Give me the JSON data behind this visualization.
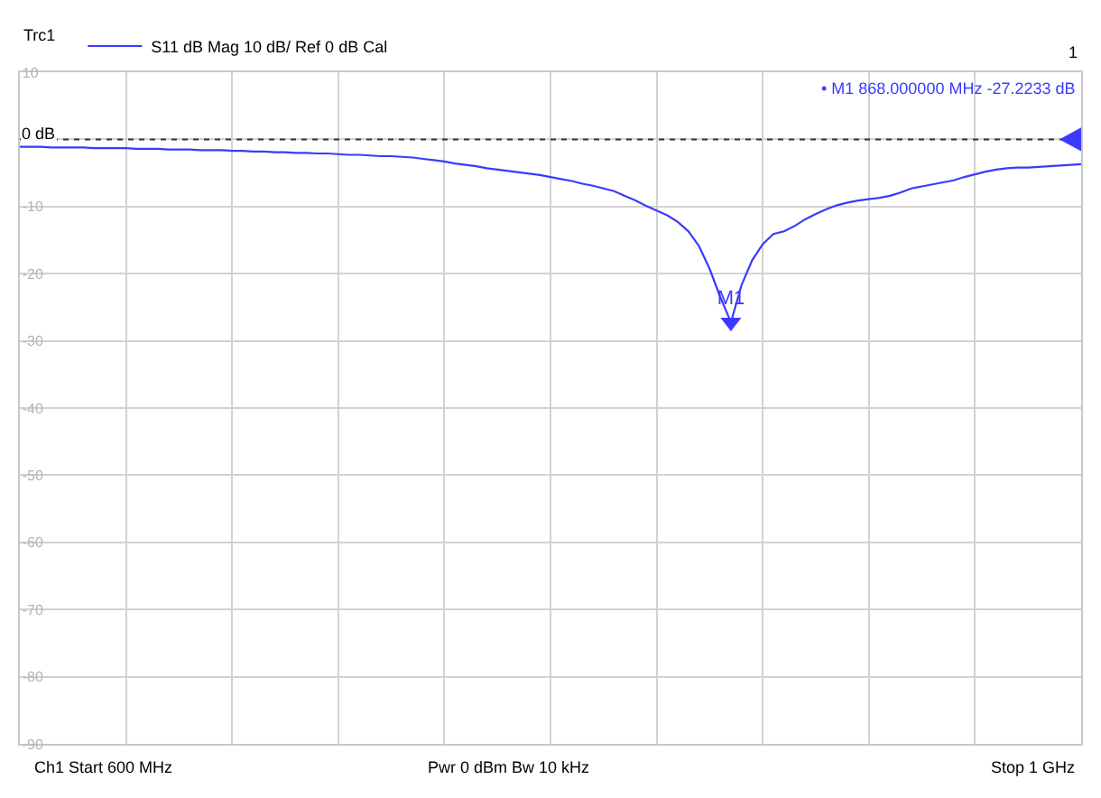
{
  "chart_data": {
    "type": "line",
    "legend_title": "Trc1",
    "categories": [
      null,
      null,
      null,
      null,
      null,
      null,
      null,
      null,
      null,
      null,
      null,
      null,
      null,
      null,
      null,
      null,
      null,
      null,
      null,
      null,
      null,
      null,
      null,
      null,
      null,
      null,
      null,
      null,
      null,
      null,
      null,
      null,
      null,
      null,
      null,
      null,
      null,
      null,
      null,
      null,
      null,
      null,
      null,
      null,
      null,
      null,
      null,
      null,
      null,
      null,
      null,
      null,
      null,
      null,
      null,
      null,
      null,
      null,
      null,
      null,
      null,
      null,
      null,
      null,
      null,
      null,
      null,
      null,
      null,
      null,
      null,
      null,
      null,
      null,
      null,
      null,
      null,
      null,
      null,
      null,
      null,
      null,
      null,
      null,
      null,
      null,
      null,
      null,
      null,
      null,
      null,
      null,
      null,
      null,
      null,
      null,
      null,
      null,
      null,
      null,
      null
    ],
    "series": [
      {
        "name": "S11 dB Mag 10 dB/ Ref 0 dB Cal",
        "color": "#3a3aff",
        "values": [
          -1.1,
          -1.1,
          -1.1,
          -1.2,
          -1.2,
          -1.2,
          -1.2,
          -1.3,
          -1.3,
          -1.3,
          -1.3,
          -1.4,
          -1.4,
          -1.4,
          -1.5,
          -1.5,
          -1.5,
          -1.6,
          -1.6,
          -1.6,
          -1.7,
          -1.7,
          -1.8,
          -1.8,
          -1.9,
          -1.9,
          -2.0,
          -2.0,
          -2.1,
          -2.1,
          -2.2,
          -2.3,
          -2.3,
          -2.4,
          -2.5,
          -2.5,
          -2.6,
          -2.7,
          -2.9,
          -3.1,
          -3.3,
          -3.6,
          -3.8,
          -4.0,
          -4.3,
          -4.5,
          -4.7,
          -4.9,
          -5.1,
          -5.3,
          -5.6,
          -5.9,
          -6.2,
          -6.6,
          -6.9,
          -7.3,
          -7.7,
          -8.4,
          -9.1,
          -9.9,
          -10.6,
          -11.3,
          -12.3,
          -13.7,
          -15.9,
          -19.3,
          -23.5,
          -27.2233,
          -21.7,
          -18.0,
          -15.6,
          -14.1,
          -13.7,
          -12.9,
          -11.9,
          -11.1,
          -10.4,
          -9.8,
          -9.4,
          -9.1,
          -8.9,
          -8.7,
          -8.4,
          -7.9,
          -7.3,
          -7.0,
          -6.7,
          -6.4,
          -6.1,
          -5.6,
          -5.2,
          -4.8,
          -4.5,
          -4.3,
          -4.2,
          -4.2,
          -4.1,
          -4.0,
          -3.9,
          -3.8,
          -3.7
        ]
      }
    ],
    "ylim": [
      -90,
      10
    ],
    "yticks": [
      10,
      {
        "value": 0,
        "label": null
      },
      -10,
      -20,
      -30,
      -40,
      -50,
      -60,
      -70,
      -80,
      -90
    ],
    "tick_labels": "y",
    "ref_lines": [
      {
        "axis": "y",
        "value": 0,
        "label": "0 dB",
        "color": "#333333",
        "line_style": "dotted"
      }
    ],
    "annotations": [
      "1",
      "• M1 868.000000 MHz -27.2233 dB",
      {
        "text": "M1",
        "y": -27.2233
      },
      "Ch1 Start 600 MHz",
      "Pwr 0 dBm Bw 10 kHz",
      "Stop 1 GHz"
    ],
    "grid": true,
    "legend": "top left",
    "line_style": "solid",
    "marker": "none"
  }
}
